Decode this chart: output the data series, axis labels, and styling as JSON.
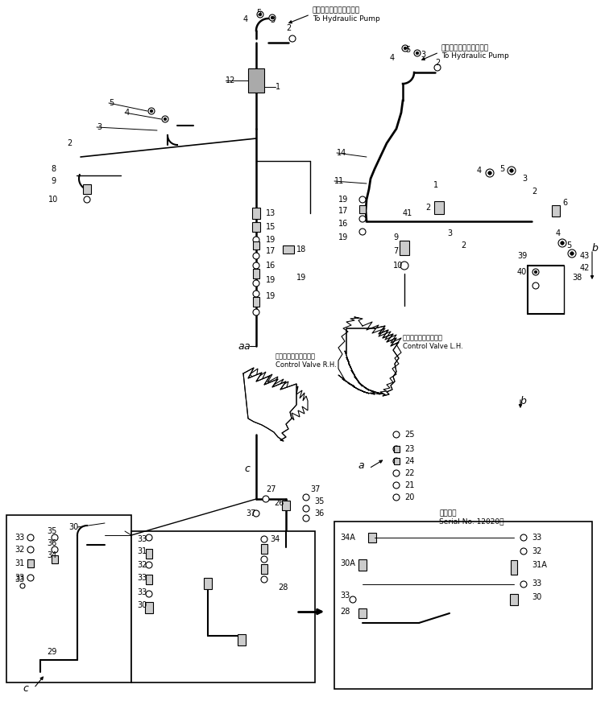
{
  "bg": "#ffffff",
  "lc": "#000000",
  "fig_w": 7.51,
  "fig_h": 8.71,
  "dpi": 100,
  "ann_left_jp": "ハイドロリックポンプへ",
  "ann_left_en": "To Hydraulic Pump",
  "ann_right_jp": "ハイドロリックポンプへ",
  "ann_right_en": "To Hydraulic Pump",
  "cv_rh_jp": "コントロールバルブ右",
  "cv_rh_en": "Control Valve R.H.",
  "cv_lh_jp": "コントロールバルブ左",
  "cv_lh_en": "Control Valve L.H.",
  "serial_jp": "適用号性",
  "serial_en": "Serial No. 12020〜"
}
